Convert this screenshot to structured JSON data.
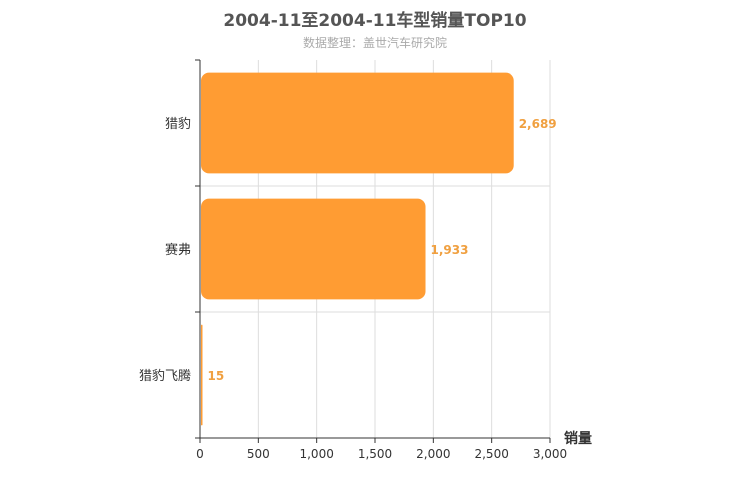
{
  "chart_data": {
    "type": "bar",
    "orientation": "horizontal",
    "title": "2004-11至2004-11车型销量TOP10",
    "subtitle": "数据整理：盖世汽车研究院",
    "categories": [
      "猎豹",
      "赛弗",
      "猎豹飞腾"
    ],
    "values": [
      2689,
      1933,
      15
    ],
    "value_labels": [
      "2,689",
      "1,933",
      "15"
    ],
    "xlabel": "销量",
    "ylabel": "",
    "xlim": [
      0,
      3000
    ],
    "x_ticks": [
      0,
      500,
      1000,
      1500,
      2000,
      2500,
      3000
    ],
    "x_tick_labels": [
      "0",
      "500",
      "1,000",
      "1,500",
      "2,000",
      "2,500",
      "3,000"
    ],
    "grid": true,
    "bar_color": "#ff9c33",
    "label_color": "#f0a040"
  }
}
